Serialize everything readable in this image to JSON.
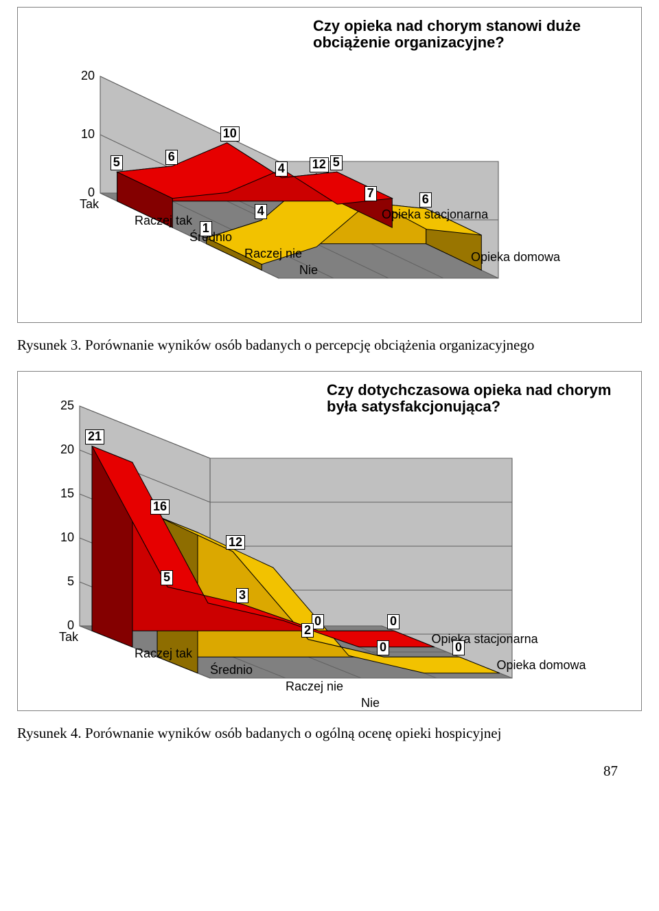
{
  "chart1": {
    "type": "3d-area",
    "title": "Czy opieka nad chorym stanowi duże obciążenie organizacyjne?",
    "categories": [
      "Tak",
      "Raczej tak",
      "Średnio",
      "Raczej nie",
      "Nie"
    ],
    "series": [
      {
        "name": "Opieka stacjonarna",
        "values": [
          5,
          6,
          10,
          4,
          5
        ],
        "color": "#cc0000",
        "top_color": "#e60000"
      },
      {
        "name": "Opieka domowa",
        "values": [
          1,
          4,
          12,
          7,
          6
        ],
        "color": "#dba800",
        "top_color": "#f2c200"
      }
    ],
    "y_axis": {
      "ticks": [
        0,
        10,
        20
      ],
      "min": 0,
      "max": 20
    },
    "colors": {
      "wall_left": "#c0c0c0",
      "wall_back": "#c0c0c0",
      "floor": "#808080",
      "grid": "#606060",
      "border": "#7f7f7f"
    }
  },
  "chart2": {
    "type": "3d-area",
    "title": "Czy dotychczasowa opieka nad chorym była satysfakcjonująca?",
    "categories": [
      "Tak",
      "Raczej tak",
      "Średnio",
      "Raczej nie",
      "Nie"
    ],
    "series": [
      {
        "name": "Opieka stacjonarna",
        "values": [
          21,
          5,
          3,
          0,
          0
        ],
        "color": "#cc0000",
        "top_color": "#e60000"
      },
      {
        "name": "Opieka domowa",
        "values": [
          16,
          12,
          2,
          0,
          0
        ],
        "color": "#dba800",
        "top_color": "#f2c200"
      }
    ],
    "y_axis": {
      "ticks": [
        0,
        5,
        10,
        15,
        20,
        25
      ],
      "min": 0,
      "max": 25
    },
    "colors": {
      "wall_left": "#c0c0c0",
      "wall_back": "#c0c0c0",
      "floor": "#808080",
      "grid": "#606060",
      "border": "#7f7f7f"
    }
  },
  "caption1": "Rysunek 3. Porównanie wyników osób badanych o percepcję obciążenia organizacyjnego",
  "caption2": "Rysunek 4. Porównanie wyników osób badanych o ogólną ocenę opieki hospicyjnej",
  "page_number": "87"
}
